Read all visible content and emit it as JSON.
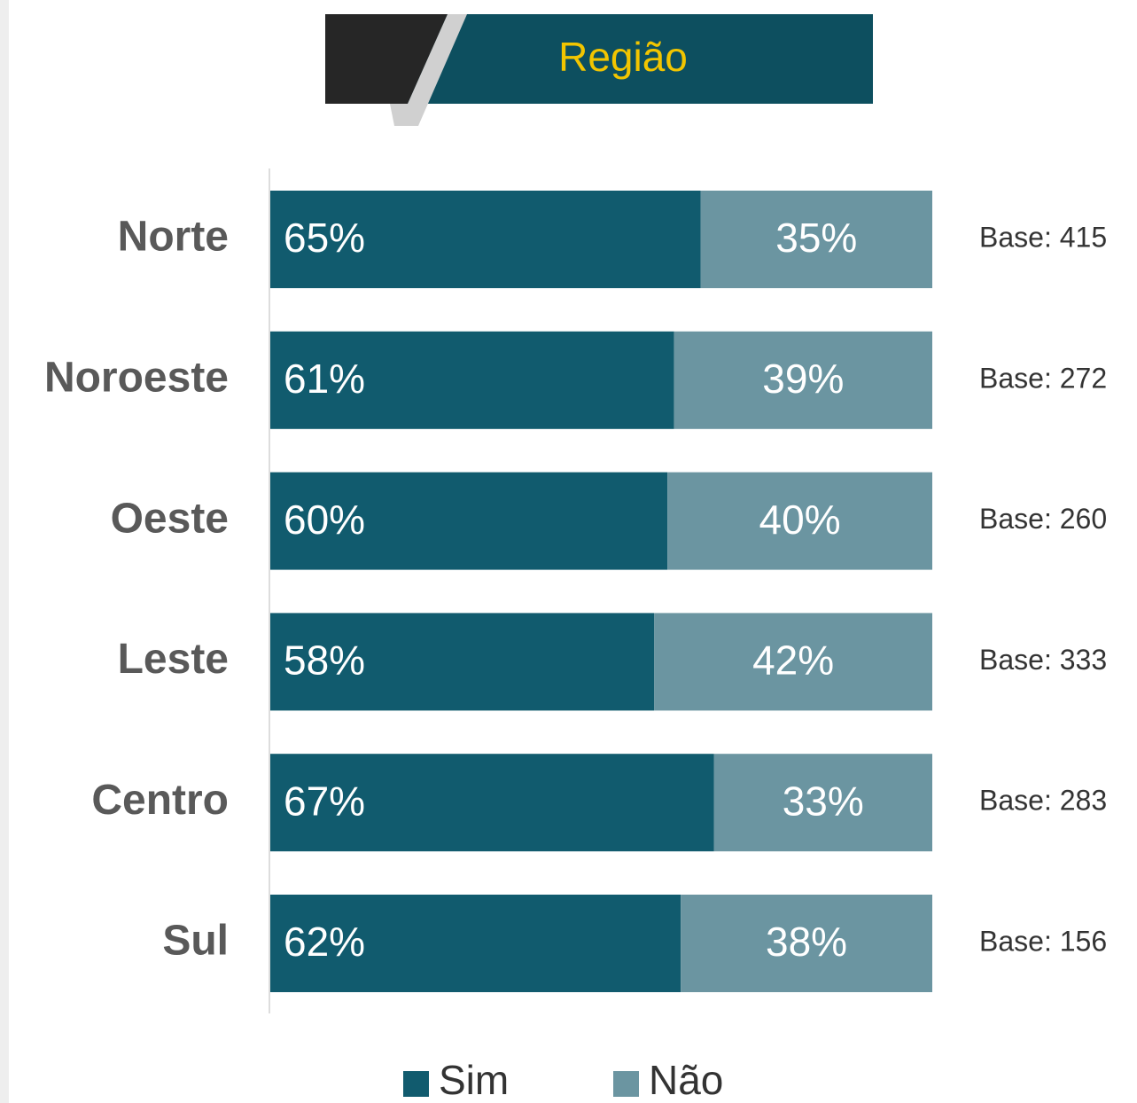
{
  "chart_data": {
    "type": "stacked-bar-horizontal",
    "title": "Região",
    "categories": [
      "Norte",
      "Noroeste",
      "Oeste",
      "Leste",
      "Centro",
      "Sul"
    ],
    "series": [
      {
        "name": "Sim",
        "color": "#115b6e",
        "values": [
          65,
          61,
          60,
          58,
          67,
          62
        ],
        "value_labels": [
          "65%",
          "61%",
          "60%",
          "58%",
          "67%",
          "62%"
        ]
      },
      {
        "name": "Não",
        "color": "#6b95a1",
        "values": [
          35,
          39,
          40,
          42,
          33,
          38
        ],
        "value_labels": [
          "35%",
          "39%",
          "40%",
          "42%",
          "33%",
          "38%"
        ]
      }
    ],
    "annotations": [
      "Base: 415",
      "Base: 272",
      "Base: 260",
      "Base: 333",
      "Base: 283",
      "Base: 156"
    ],
    "xlim": [
      0,
      100
    ]
  }
}
